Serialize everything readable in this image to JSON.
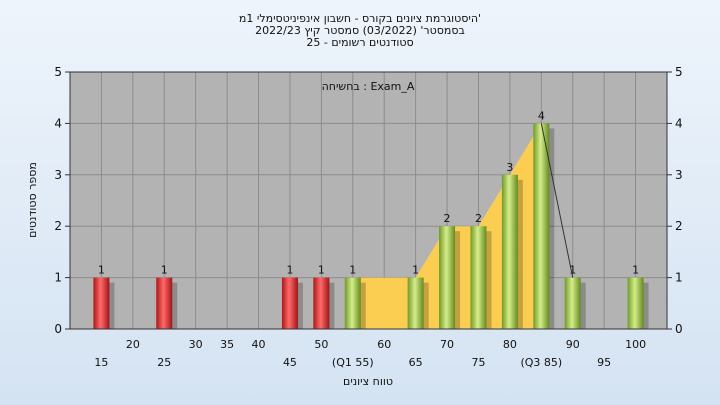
{
  "chart_data": {
    "type": "bar",
    "title": {
      "line1": "היסטוגרמת ציונים בקורס - חשבון אינפיניטסימלי 1מ'",
      "line2": "בסמסטר' (03/2022) סמסטר קיץ 2022/23",
      "line3": "25 - סטודנטים רשומים"
    },
    "annotation": "בחשיחה : Exam_A",
    "ylabel": "מספר סטודנטים",
    "xlabel": "טווח ציונים",
    "ylim": [
      0,
      5
    ],
    "yticks": [
      0,
      1,
      2,
      3,
      4,
      5
    ],
    "xlim": [
      10,
      105
    ],
    "x_ticks_upper": [
      "20",
      "30",
      "35",
      "40",
      "50",
      "60",
      "70",
      "80",
      "90",
      "100"
    ],
    "x_ticks_lower": [
      "15",
      "25",
      "45",
      "(Q1 55)",
      "65",
      "75",
      "(Q3 85)",
      "95"
    ],
    "bars": [
      {
        "x": 15,
        "value": 1,
        "color": "red"
      },
      {
        "x": 25,
        "value": 1,
        "color": "red"
      },
      {
        "x": 45,
        "value": 1,
        "color": "red"
      },
      {
        "x": 50,
        "value": 1,
        "color": "red"
      },
      {
        "x": 55,
        "value": 1,
        "color": "green"
      },
      {
        "x": 65,
        "value": 1,
        "color": "green"
      },
      {
        "x": 70,
        "value": 2,
        "color": "green"
      },
      {
        "x": 75,
        "value": 2,
        "color": "green"
      },
      {
        "x": 80,
        "value": 3,
        "color": "green"
      },
      {
        "x": 85,
        "value": 4,
        "color": "green"
      },
      {
        "x": 90,
        "value": 1,
        "color": "green"
      },
      {
        "x": 100,
        "value": 1,
        "color": "green"
      }
    ],
    "area": [
      [
        55,
        1
      ],
      [
        65,
        1
      ],
      [
        70,
        2
      ],
      [
        75,
        2
      ],
      [
        80,
        3
      ],
      [
        85,
        4
      ],
      [
        85,
        0
      ],
      [
        55,
        0
      ]
    ],
    "grid": true,
    "colors": {
      "plot_bg": "#b3b3b3",
      "grid": "#8c8c8c",
      "area": "#ffd04d",
      "red_bar": "#d92b2b",
      "green_bar": "#9cc24a",
      "line": "#333333"
    }
  }
}
